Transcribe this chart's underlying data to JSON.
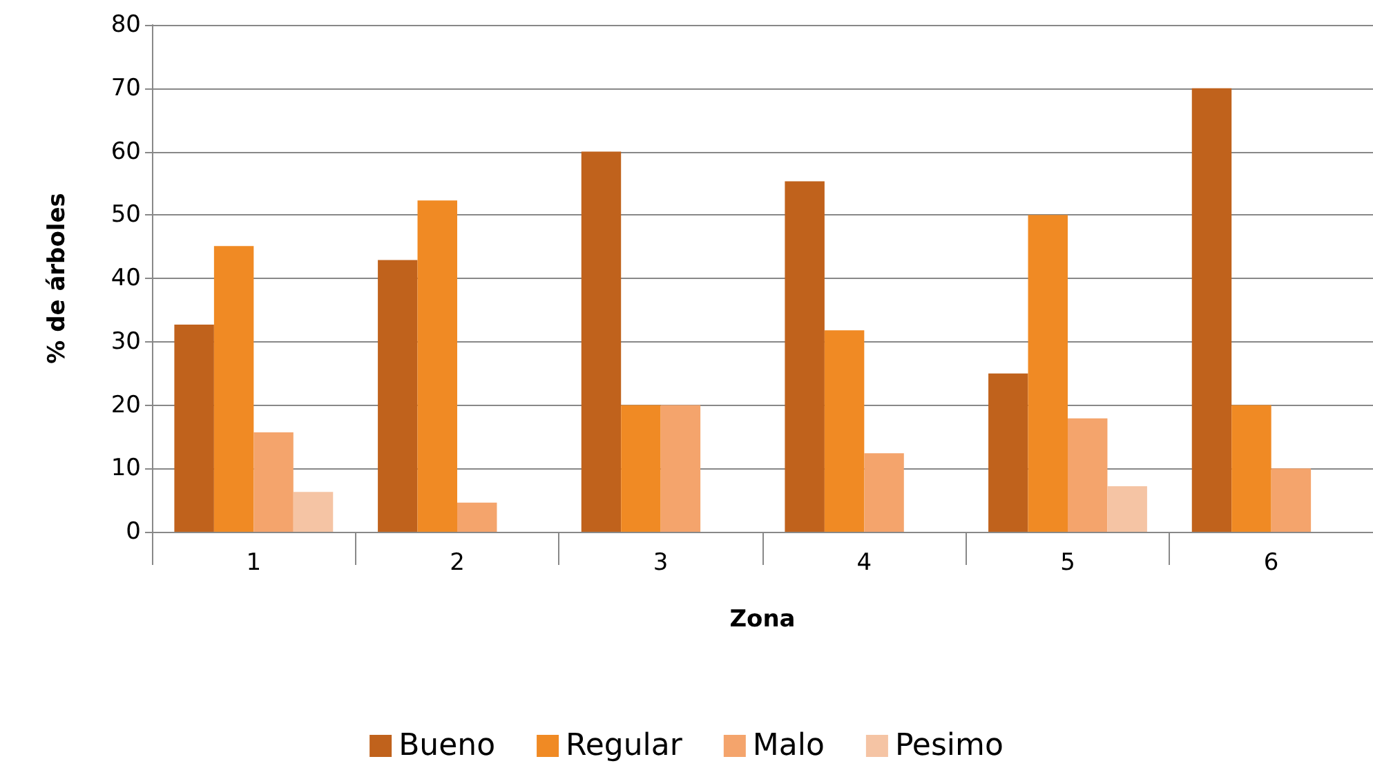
{
  "chart_data": {
    "type": "bar",
    "xlabel": "Zona",
    "ylabel": "% de árboles",
    "categories": [
      "1",
      "2",
      "3",
      "4",
      "5",
      "6"
    ],
    "series": [
      {
        "name": "Bueno",
        "color": "#c0621c",
        "values": [
          32.7,
          42.9,
          60,
          55.3,
          25,
          70
        ]
      },
      {
        "name": "Regular",
        "color": "#f08a24",
        "values": [
          45.1,
          52.3,
          20,
          31.8,
          50,
          20
        ]
      },
      {
        "name": "Malo",
        "color": "#f4a46c",
        "values": [
          15.7,
          4.6,
          20,
          12.4,
          17.9,
          10
        ]
      },
      {
        "name": "Pesimo",
        "color": "#f5c4a4",
        "values": [
          6.3,
          0,
          0,
          0,
          7.2,
          0
        ]
      }
    ],
    "ylim": [
      0,
      80
    ],
    "yticks": [
      0,
      10,
      20,
      30,
      40,
      50,
      60,
      70,
      80
    ],
    "grid": "y",
    "legend": "bottom"
  }
}
